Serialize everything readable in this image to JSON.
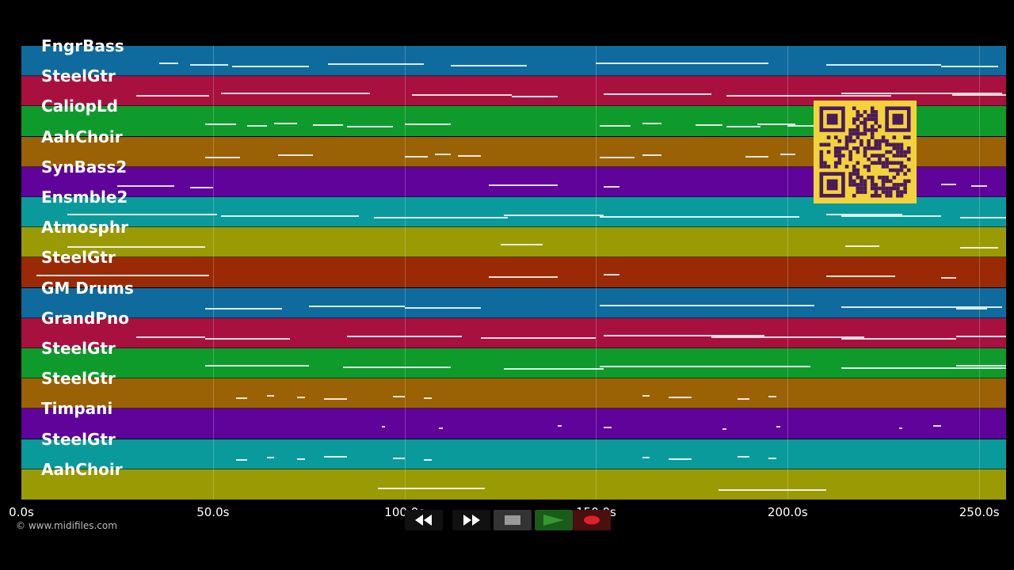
{
  "tracks": [
    {
      "label": "FngrBass",
      "color": "#0f6b9e"
    },
    {
      "label": "SteelGtr",
      "color": "#a8103f"
    },
    {
      "label": "CaliopLd",
      "color": "#0f9a2c"
    },
    {
      "label": "AahChoir",
      "color": "#9a6105"
    },
    {
      "label": "SynBass2",
      "color": "#60039a"
    },
    {
      "label": "Ensmble2",
      "color": "#0a9a9c"
    },
    {
      "label": "Atmosphr",
      "color": "#9a9a05"
    },
    {
      "label": "SteelGtr",
      "color": "#9a2a05"
    },
    {
      "label": "GM Drums",
      "color": "#0f6b9e"
    },
    {
      "label": "GrandPno",
      "color": "#a8103f"
    },
    {
      "label": "SteelGtr",
      "color": "#0f9a2c"
    },
    {
      "label": "SteelGtr",
      "color": "#9a6105"
    },
    {
      "label": "Timpani",
      "color": "#60039a"
    },
    {
      "label": "SteelGtr",
      "color": "#0a9a9c"
    },
    {
      "label": "AahChoir",
      "color": "#9a9a05"
    }
  ],
  "timeline": {
    "max_seconds": 257,
    "ticks": [
      {
        "t": 0,
        "label": "0.0s"
      },
      {
        "t": 50,
        "label": "50.0s"
      },
      {
        "t": 100,
        "label": "100.0s"
      },
      {
        "t": 150,
        "label": "150.0s"
      },
      {
        "t": 200,
        "label": "200.0s"
      },
      {
        "t": 250,
        "label": "250.0s"
      }
    ]
  },
  "copyright": "© www.midifiles.com",
  "transport": {
    "rewind_icon": "rewind-icon",
    "fast_forward_icon": "fast-forward-icon",
    "stop_icon": "stop-icon",
    "play_icon": "play-icon",
    "record_icon": "record-icon",
    "play_color": "#2f9a2f",
    "record_color": "#e0202a"
  },
  "notes": [
    [
      [
        36,
        5
      ],
      [
        44,
        10
      ],
      [
        55,
        20
      ],
      [
        80,
        25
      ],
      [
        112,
        20
      ],
      [
        150,
        45
      ],
      [
        210,
        30
      ],
      [
        240,
        15
      ]
    ],
    [
      [
        30,
        19
      ],
      [
        52,
        39
      ],
      [
        102,
        26
      ],
      [
        128,
        12
      ],
      [
        152,
        28
      ],
      [
        184,
        43
      ],
      [
        214,
        42
      ],
      [
        243,
        14
      ]
    ],
    [
      [
        48,
        8
      ],
      [
        59,
        5
      ],
      [
        66,
        6
      ],
      [
        76,
        8
      ],
      [
        85,
        12
      ],
      [
        100,
        12
      ],
      [
        151,
        8
      ],
      [
        162,
        5
      ],
      [
        176,
        7
      ],
      [
        184,
        9
      ],
      [
        192,
        10
      ],
      [
        200,
        8
      ],
      [
        210,
        12
      ]
    ],
    [
      [
        48,
        9
      ],
      [
        67,
        9
      ],
      [
        100,
        6
      ],
      [
        108,
        4
      ],
      [
        114,
        6
      ],
      [
        151,
        9
      ],
      [
        162,
        5
      ],
      [
        189,
        6
      ],
      [
        198,
        4
      ]
    ],
    [
      [
        25,
        15
      ],
      [
        44,
        6
      ],
      [
        122,
        18
      ],
      [
        152,
        4
      ],
      [
        240,
        4
      ],
      [
        248,
        4
      ]
    ],
    [
      [
        12,
        39
      ],
      [
        52,
        36
      ],
      [
        92,
        35
      ],
      [
        126,
        26
      ],
      [
        151,
        52
      ],
      [
        210,
        20
      ],
      [
        214,
        26
      ],
      [
        245,
        12
      ]
    ],
    [
      [
        12,
        36
      ],
      [
        125,
        11
      ],
      [
        215,
        9
      ],
      [
        245,
        10
      ]
    ],
    [
      [
        4,
        45
      ],
      [
        122,
        18
      ],
      [
        152,
        4
      ],
      [
        210,
        18
      ],
      [
        240,
        4
      ]
    ],
    [
      [
        48,
        20
      ],
      [
        75,
        25
      ],
      [
        100,
        20
      ],
      [
        151,
        56
      ],
      [
        214,
        42
      ],
      [
        244,
        8
      ]
    ],
    [
      [
        30,
        18
      ],
      [
        48,
        22
      ],
      [
        85,
        30
      ],
      [
        120,
        30
      ],
      [
        152,
        42
      ],
      [
        180,
        40
      ],
      [
        214,
        30
      ],
      [
        244,
        14
      ]
    ],
    [
      [
        48,
        27
      ],
      [
        84,
        28
      ],
      [
        126,
        26
      ],
      [
        151,
        55
      ],
      [
        214,
        43
      ],
      [
        244,
        14
      ]
    ],
    [
      [
        56,
        3
      ],
      [
        64,
        2
      ],
      [
        72,
        2
      ],
      [
        79,
        6
      ],
      [
        97,
        3
      ],
      [
        105,
        2
      ],
      [
        162,
        2
      ],
      [
        169,
        6
      ],
      [
        187,
        3
      ],
      [
        195,
        2
      ]
    ],
    [
      [
        94,
        1
      ],
      [
        109,
        1
      ],
      [
        140,
        1
      ],
      [
        152,
        2
      ],
      [
        183,
        1
      ],
      [
        197,
        1
      ],
      [
        229,
        1
      ],
      [
        238,
        2
      ]
    ],
    [
      [
        56,
        3
      ],
      [
        64,
        2
      ],
      [
        72,
        2
      ],
      [
        79,
        6
      ],
      [
        97,
        3
      ],
      [
        105,
        2
      ],
      [
        162,
        2
      ],
      [
        169,
        6
      ],
      [
        187,
        3
      ],
      [
        195,
        2
      ]
    ],
    [
      [
        93,
        28
      ],
      [
        182,
        28
      ]
    ]
  ]
}
